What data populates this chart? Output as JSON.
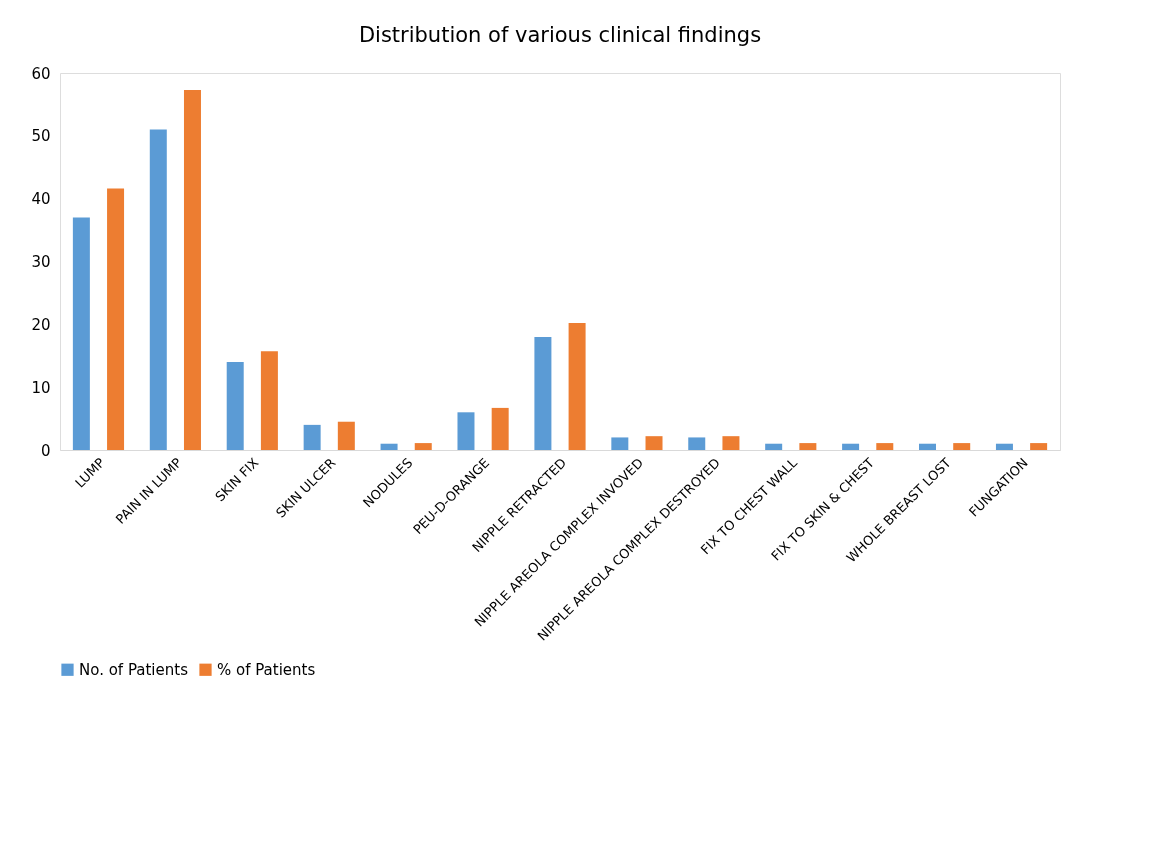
{
  "chart_data": {
    "type": "bar",
    "title": "Distribution of various clinical findings",
    "categories": [
      "LUMP",
      "PAIN IN LUMP",
      "SKIN FIX",
      "SKIN ULCER",
      "NODULES",
      "PEU-D-ORANGE",
      "NIPPLE RETRACTED",
      "NIPPLE AREOLA COMPLEX INVOVED",
      "NIPPLE AREOLA COMPLEX DESTROYED",
      "FIX TO CHEST WALL",
      "FIX TO SKIN & CHEST",
      "WHOLE BREAST LOST",
      "FUNGATION"
    ],
    "series": [
      {
        "name": "No. of Patients",
        "color": "#5b9bd5",
        "values": [
          37,
          51,
          14,
          4,
          1,
          6,
          18,
          2,
          2,
          1,
          1,
          1,
          1
        ]
      },
      {
        "name": "% of Patients",
        "color": "#ed7d31",
        "values": [
          41.6,
          57.3,
          15.7,
          4.5,
          1.1,
          6.7,
          20.2,
          2.2,
          2.2,
          1.1,
          1.1,
          1.1,
          1.1
        ]
      }
    ],
    "ylim": [
      0,
      60
    ],
    "yticks": [
      0,
      10,
      20,
      30,
      40,
      50,
      60
    ],
    "grid": false,
    "legend": "bottom"
  }
}
